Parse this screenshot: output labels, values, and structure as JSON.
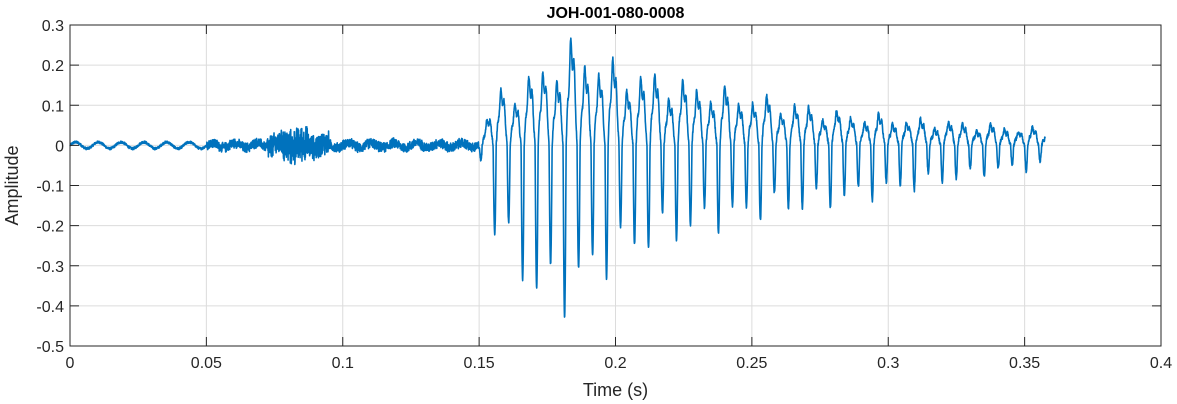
{
  "chart_data": {
    "type": "line",
    "title": "JOH-001-080-0008",
    "xlabel": "Time (s)",
    "ylabel": "Amplitude",
    "xlim": [
      0,
      0.4
    ],
    "ylim": [
      -0.5,
      0.3
    ],
    "grid": true,
    "x_ticks": [
      0,
      0.05,
      0.1,
      0.15,
      0.2,
      0.25,
      0.3,
      0.35,
      0.4
    ],
    "x_tick_labels": [
      "0",
      "0.05",
      "0.1",
      "0.15",
      "0.2",
      "0.25",
      "0.3",
      "0.35",
      "0.4"
    ],
    "y_ticks": [
      -0.5,
      -0.4,
      -0.3,
      -0.2,
      -0.1,
      0,
      0.1,
      0.2,
      0.3
    ],
    "y_tick_labels": [
      "-0.5",
      "-0.4",
      "-0.3",
      "-0.2",
      "-0.1",
      "0",
      "0.1",
      "0.2",
      "0.3"
    ],
    "series": [
      {
        "color": "#0072BD",
        "description": "Speech waveform: low-level noise/hum 0-0.15 s, voiced onset near 0.152 s peaking ~0.26 / ~-0.41 around 0.17-0.19 s, decaying to ~0.04 by 0.357 s",
        "segments": [
          {
            "t0": 0.0,
            "t1": 0.05,
            "kind": "hum",
            "amp": 0.008,
            "freq": 120
          },
          {
            "t0": 0.05,
            "t1": 0.072,
            "kind": "noise",
            "amp": 0.018
          },
          {
            "t0": 0.072,
            "t1": 0.095,
            "kind": "noise",
            "amp": 0.04
          },
          {
            "t0": 0.095,
            "t1": 0.15,
            "kind": "noise",
            "amp": 0.015
          },
          {
            "t0": 0.15,
            "t1": 0.3575,
            "kind": "voiced",
            "f0": 195
          }
        ],
        "envelope_pos": [
          [
            0.15,
            0.02
          ],
          [
            0.156,
            0.13
          ],
          [
            0.17,
            0.18
          ],
          [
            0.185,
            0.26
          ],
          [
            0.2,
            0.2
          ],
          [
            0.225,
            0.16
          ],
          [
            0.255,
            0.12
          ],
          [
            0.285,
            0.08
          ],
          [
            0.32,
            0.06
          ],
          [
            0.3575,
            0.04
          ]
        ],
        "envelope_neg": [
          [
            0.15,
            -0.02
          ],
          [
            0.156,
            -0.22
          ],
          [
            0.168,
            -0.35
          ],
          [
            0.175,
            -0.41
          ],
          [
            0.185,
            -0.38
          ],
          [
            0.2,
            -0.28
          ],
          [
            0.225,
            -0.22
          ],
          [
            0.255,
            -0.17
          ],
          [
            0.285,
            -0.14
          ],
          [
            0.32,
            -0.09
          ],
          [
            0.3575,
            -0.05
          ]
        ]
      }
    ]
  }
}
